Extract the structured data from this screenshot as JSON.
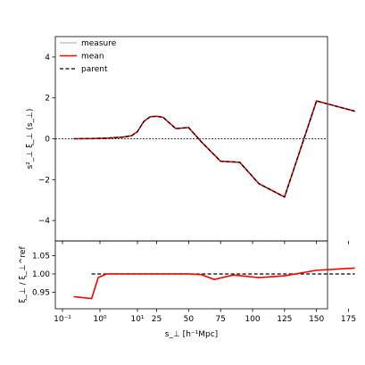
{
  "chart_data": [
    {
      "type": "line",
      "panel": "main",
      "xlabel": "s_⊥ [h⁻¹Mpc]",
      "ylabel": "s²_⊥ ξ_⊥ (s_⊥)",
      "ylim": [
        -5,
        5
      ],
      "yticks": [
        4,
        2,
        0,
        -2,
        -4
      ],
      "ytick_labels": [
        "4",
        "2",
        "0",
        "−2",
        "−4"
      ],
      "reference_line": 0,
      "legend": {
        "placement": "top-left",
        "entries": [
          {
            "label": "measure",
            "color": "#c0c0e0",
            "style": "solid"
          },
          {
            "label": "mean",
            "color": "#ff0000",
            "style": "solid"
          },
          {
            "label": "parent",
            "color": "#000000",
            "style": "dashed"
          }
        ]
      },
      "x": [
        0.2,
        0.6,
        1.5,
        4,
        7,
        10,
        15,
        20,
        25,
        30,
        40,
        50,
        60,
        75,
        90,
        105,
        125,
        150,
        180
      ],
      "series": [
        {
          "name": "mean",
          "color": "#ff0000",
          "values": [
            0.0,
            0.01,
            0.03,
            0.08,
            0.15,
            0.35,
            0.85,
            1.08,
            1.1,
            1.05,
            0.5,
            0.55,
            -0.15,
            -1.1,
            -1.15,
            -2.2,
            -2.85,
            1.85,
            1.35
          ]
        },
        {
          "name": "parent",
          "color": "#000000",
          "values": [
            0.0,
            0.01,
            0.03,
            0.08,
            0.15,
            0.35,
            0.85,
            1.08,
            1.1,
            1.05,
            0.5,
            0.55,
            -0.15,
            -1.1,
            -1.15,
            -2.2,
            -2.85,
            1.85,
            1.35
          ]
        }
      ]
    },
    {
      "type": "line",
      "panel": "ratio",
      "ylabel": "ξ_⊥ / ξ_⊥^ref",
      "ylim": [
        0.905,
        1.09
      ],
      "yticks": [
        1.05,
        1.0,
        0.95
      ],
      "ytick_labels": [
        "1.05",
        "1.00",
        "0.95"
      ],
      "reference_line": 1.0,
      "x": [
        0.2,
        0.6,
        0.9,
        1.5,
        4,
        10,
        25,
        50,
        60,
        70,
        85,
        105,
        125,
        150,
        180
      ],
      "series": [
        {
          "name": "mean",
          "color": "#ff0000",
          "values": [
            0.938,
            0.933,
            0.99,
            1.0,
            1.0,
            1.0,
            1.0,
            1.0,
            0.998,
            0.985,
            0.997,
            0.99,
            0.995,
            1.01,
            1.016
          ]
        }
      ]
    }
  ],
  "x_axis": {
    "ticks": [
      {
        "value": 0.1,
        "label": "10⁻¹"
      },
      {
        "value": 1,
        "label": "10⁰"
      },
      {
        "value": 10,
        "label": "10¹"
      },
      {
        "value": 25,
        "label": "25"
      },
      {
        "value": 50,
        "label": "50"
      },
      {
        "value": 75,
        "label": "75"
      },
      {
        "value": 100,
        "label": "100"
      },
      {
        "value": 125,
        "label": "125"
      },
      {
        "value": 150,
        "label": "150"
      },
      {
        "value": 175,
        "label": "175"
      }
    ],
    "scale": "symlog",
    "label": "s_⊥ [h⁻¹Mpc]"
  }
}
